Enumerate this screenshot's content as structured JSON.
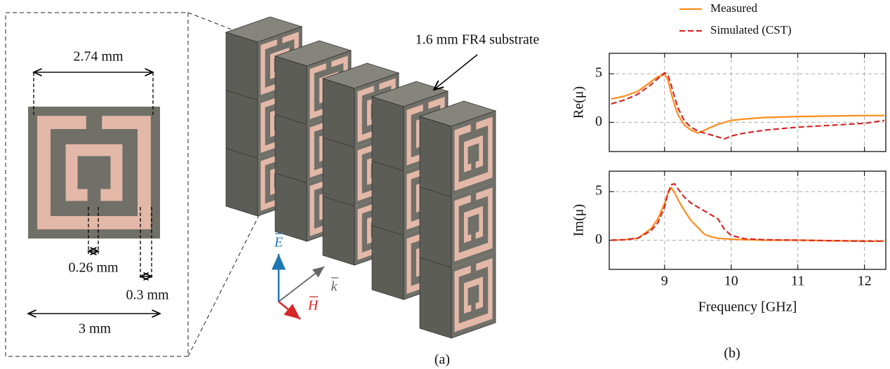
{
  "figure_a": {
    "caption": "(a)",
    "dimensions": {
      "outer_span": "2.74 mm",
      "gap_width": "0.26 mm",
      "ring_width": "0.3 mm",
      "cell_size": "3 mm"
    },
    "substrate_label": "1.6 mm FR4 substrate",
    "field_labels": {
      "E": "E",
      "H": "H",
      "k": "k"
    }
  },
  "figure_b": {
    "caption": "(b)",
    "legend": "above"
  },
  "chart_data": [
    {
      "type": "line",
      "ylabel": "Re(μ)",
      "x": [
        8.2,
        8.4,
        8.6,
        8.8,
        8.9,
        9.0,
        9.05,
        9.1,
        9.15,
        9.2,
        9.3,
        9.4,
        9.5,
        9.6,
        9.7,
        9.8,
        9.9,
        10.0,
        10.2,
        10.5,
        11,
        11.5,
        12,
        12.3
      ],
      "series": [
        {
          "name": "Measured",
          "color": "#ff8c1a",
          "dashed": false,
          "values": [
            2.4,
            2.7,
            3.2,
            4.2,
            4.7,
            4.9,
            4.4,
            3.0,
            1.8,
            0.8,
            -0.3,
            -0.8,
            -1.1,
            -0.8,
            -0.5,
            -0.2,
            0.0,
            0.2,
            0.35,
            0.5,
            0.6,
            0.65,
            0.7,
            0.7
          ]
        },
        {
          "name": "Simulated (CST)",
          "color": "#d62728",
          "dashed": true,
          "values": [
            1.9,
            2.3,
            2.9,
            3.9,
            4.5,
            5.1,
            4.9,
            3.8,
            2.6,
            1.5,
            0.1,
            -0.5,
            -0.9,
            -1.1,
            -1.3,
            -1.5,
            -1.7,
            -1.4,
            -1.1,
            -0.8,
            -0.5,
            -0.3,
            -0.1,
            0.2
          ]
        }
      ],
      "xlim": [
        8.17,
        12.32
      ],
      "ylim": [
        -3,
        7.1
      ],
      "xticks": [
        9,
        10,
        11,
        12
      ],
      "yticks": [
        0,
        5
      ],
      "grid": true,
      "xticklabels": false
    },
    {
      "type": "line",
      "ylabel": "Im(μ)",
      "xlabel": "Frequency [GHz]",
      "x": [
        8.2,
        8.4,
        8.6,
        8.8,
        8.9,
        9.0,
        9.05,
        9.1,
        9.15,
        9.2,
        9.3,
        9.4,
        9.5,
        9.6,
        9.7,
        9.8,
        9.9,
        10.0,
        10.2,
        10.5,
        11,
        11.5,
        12,
        12.3
      ],
      "series": [
        {
          "color": "#ff8c1a",
          "dashed": false,
          "values": [
            0.0,
            0.05,
            0.2,
            1.2,
            2.2,
            3.8,
            4.8,
            5.4,
            4.9,
            4.2,
            3.0,
            2.0,
            1.3,
            0.6,
            0.35,
            0.2,
            0.15,
            0.1,
            0.05,
            0.0,
            0.0,
            -0.05,
            -0.1,
            -0.1
          ]
        },
        {
          "color": "#d62728",
          "dashed": true,
          "values": [
            0.0,
            0.05,
            0.2,
            1.0,
            1.8,
            3.4,
            4.8,
            5.7,
            5.8,
            5.3,
            4.4,
            3.8,
            3.4,
            3.0,
            2.6,
            2.2,
            1.1,
            0.5,
            0.15,
            0.05,
            0.0,
            -0.05,
            -0.1,
            -0.1
          ]
        }
      ],
      "xlim": [
        8.17,
        12.32
      ],
      "ylim": [
        -3,
        7.1
      ],
      "xticks": [
        9,
        10,
        11,
        12
      ],
      "yticks": [
        0,
        5
      ],
      "grid": true,
      "xticklabels": true
    }
  ]
}
